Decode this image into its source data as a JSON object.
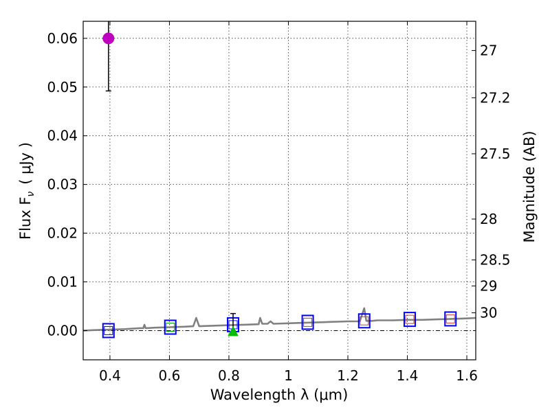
{
  "chart_data": {
    "type": "scatter",
    "xlabel": "Wavelength  λ (μm)",
    "ylabel": "Flux  F",
    "ylabel_subscript": "ν",
    "ylabel_unit": "( μJy )",
    "y2label": "Magnitude (AB)",
    "xlim": [
      0.31,
      1.63
    ],
    "ylim": [
      -0.006,
      0.0635
    ],
    "grid": true,
    "x_ticks": [
      0.4,
      0.6,
      0.8,
      1.0,
      1.2,
      1.4,
      1.6
    ],
    "x_tick_labels": [
      "0.4",
      "0.6",
      "0.8",
      "1",
      "1.2",
      "1.4",
      "1.6"
    ],
    "y_ticks": [
      0.0,
      0.01,
      0.02,
      0.03,
      0.04,
      0.05,
      0.06
    ],
    "y_tick_labels": [
      "0.00",
      "0.01",
      "0.02",
      "0.03",
      "0.04",
      "0.05",
      "0.06"
    ],
    "y2_tick_labels": [
      "27",
      "27.2",
      "27.5",
      "28",
      "28.5",
      "29",
      "30"
    ],
    "y2_tick_flux": [
      0.0575,
      0.0478,
      0.0363,
      0.0229,
      0.0145,
      0.00917,
      0.00365
    ],
    "measured_point": {
      "x": 0.395,
      "y": 0.06,
      "err_low": 0.0492,
      "err_high": 0.0635,
      "color": "#bf00bf"
    },
    "model_boxes": [
      {
        "x": 0.395,
        "y": 0.0,
        "edge": "#0000ff",
        "inner": "#0000ff"
      },
      {
        "x": 0.603,
        "y": 0.0007,
        "edge": "#0000ff",
        "inner": "#00aa00"
      },
      {
        "x": 0.814,
        "y": 0.0012,
        "edge": "#0000ff",
        "inner": "#0000ff"
      },
      {
        "x": 1.065,
        "y": 0.0017,
        "edge": "#0000ff",
        "inner": "#cc3333"
      },
      {
        "x": 1.255,
        "y": 0.002,
        "edge": "#0000ff",
        "inner": "#cc3333"
      },
      {
        "x": 1.408,
        "y": 0.0023,
        "edge": "#0000ff",
        "inner": "#cc3333"
      },
      {
        "x": 1.545,
        "y": 0.0024,
        "edge": "#0000ff",
        "inner": "#cc3333"
      }
    ],
    "upper_limit": {
      "x": 0.814,
      "y": -0.0002,
      "err_high": 0.0035,
      "color": "#00bb00"
    },
    "sed_spectrum": {
      "color": "#808080",
      "x": [
        0.31,
        0.35,
        0.4,
        0.45,
        0.5,
        0.512,
        0.516,
        0.52,
        0.55,
        0.6,
        0.65,
        0.68,
        0.69,
        0.7,
        0.75,
        0.8,
        0.85,
        0.9,
        0.905,
        0.912,
        0.93,
        0.94,
        0.95,
        1.0,
        1.05,
        1.1,
        1.15,
        1.2,
        1.24,
        1.255,
        1.262,
        1.28,
        1.3,
        1.35,
        1.4,
        1.45,
        1.5,
        1.55,
        1.6,
        1.63
      ],
      "y": [
        0.0,
        0.0001,
        0.0002,
        0.0003,
        0.0005,
        0.0005,
        0.0012,
        0.0005,
        0.0006,
        0.0007,
        0.0008,
        0.0009,
        0.0026,
        0.0009,
        0.001,
        0.0011,
        0.0012,
        0.0013,
        0.0026,
        0.0014,
        0.0014,
        0.0019,
        0.0014,
        0.0015,
        0.0016,
        0.0017,
        0.0018,
        0.0019,
        0.0019,
        0.0046,
        0.002,
        0.002,
        0.0021,
        0.0021,
        0.0022,
        0.0022,
        0.0023,
        0.0024,
        0.0025,
        0.0026
      ]
    }
  }
}
